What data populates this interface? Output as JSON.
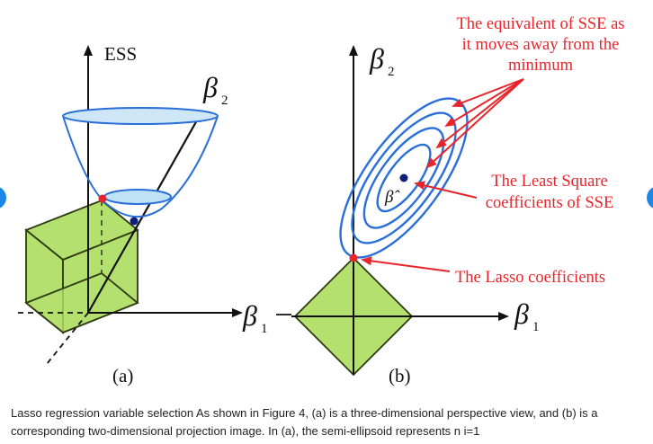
{
  "panel_a": {
    "axis_label": "ESS",
    "beta1": "β",
    "beta1_sub": "1",
    "beta2": "β",
    "beta2_sub": "2",
    "panel_label": "(a)"
  },
  "panel_b": {
    "beta1": "β",
    "beta1_sub": "1",
    "beta2": "β",
    "beta2_sub": "2",
    "beta_hat": "β̂",
    "panel_label": "(b)"
  },
  "annotations": {
    "sse_line1": "The equivalent of SSE as",
    "sse_line2": "it moves away from the",
    "sse_line3": "minimum",
    "ls_line1": "The Least Square",
    "ls_line2": "coefficients of SSE",
    "lasso": "The Lasso coefficients"
  },
  "caption": "Lasso regression variable selection As shown in Figure 4, (a) is a three-dimensional perspective view, and (b) is a corresponding two-dimensional projection image. In (a), the semi-ellipsoid represents n i=1",
  "colors": {
    "contour": "#2a6fd9",
    "region_fill": "#b4e070",
    "region_stroke": "#2f3a10",
    "annotation": "#e8252b",
    "point_red": "#e8252b",
    "point_blue": "#0c1f7a",
    "edge_dots": "#1b87e8"
  }
}
